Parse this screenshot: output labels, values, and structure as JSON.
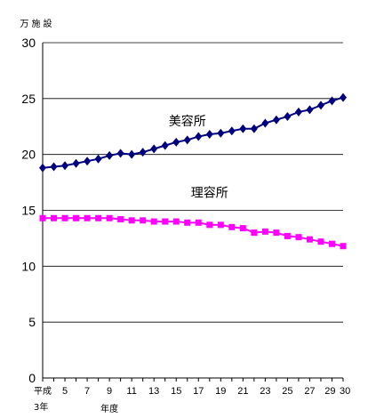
{
  "chart_data": {
    "type": "line",
    "unit_label": "万施設",
    "x_first_label": "平成",
    "x_first_sublabel": "3年",
    "xlabel": "年度",
    "x": [
      3,
      4,
      5,
      6,
      7,
      8,
      9,
      10,
      11,
      12,
      13,
      14,
      15,
      16,
      17,
      18,
      19,
      20,
      21,
      22,
      23,
      24,
      25,
      26,
      27,
      28,
      29,
      30
    ],
    "x_tick_labels": [
      {
        "x": 5,
        "label": "5"
      },
      {
        "x": 7,
        "label": "7"
      },
      {
        "x": 9,
        "label": "9"
      },
      {
        "x": 11,
        "label": "11"
      },
      {
        "x": 13,
        "label": "13"
      },
      {
        "x": 15,
        "label": "15"
      },
      {
        "x": 17,
        "label": "17"
      },
      {
        "x": 19,
        "label": "19"
      },
      {
        "x": 21,
        "label": "21"
      },
      {
        "x": 23,
        "label": "23"
      },
      {
        "x": 25,
        "label": "25"
      },
      {
        "x": 27,
        "label": "27"
      },
      {
        "x": 29,
        "label": "29"
      },
      {
        "x": 30,
        "label": "30"
      }
    ],
    "ylim": [
      0,
      30
    ],
    "y_ticks": [
      0,
      5,
      10,
      15,
      20,
      25,
      30
    ],
    "grid": true,
    "series": [
      {
        "name": "美容所",
        "color": "#00007f",
        "marker": "diamond",
        "values": [
          18.8,
          18.9,
          19.0,
          19.2,
          19.4,
          19.6,
          19.9,
          20.1,
          20.0,
          20.2,
          20.5,
          20.8,
          21.1,
          21.3,
          21.6,
          21.8,
          21.9,
          22.1,
          22.3,
          22.3,
          22.8,
          23.1,
          23.4,
          23.8,
          24.0,
          24.4,
          24.8,
          25.1
        ]
      },
      {
        "name": "理容所",
        "color": "#ff00ff",
        "marker": "square",
        "values": [
          14.3,
          14.3,
          14.3,
          14.3,
          14.3,
          14.3,
          14.3,
          14.2,
          14.1,
          14.1,
          14.0,
          14.0,
          14.0,
          13.9,
          13.9,
          13.7,
          13.7,
          13.5,
          13.4,
          13.0,
          13.1,
          13.0,
          12.7,
          12.6,
          12.4,
          12.2,
          12.0,
          11.8
        ]
      }
    ]
  }
}
